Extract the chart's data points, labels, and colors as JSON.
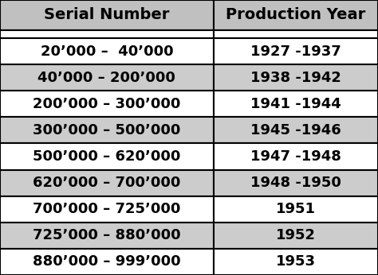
{
  "headers": [
    "Serial Number",
    "Production Year"
  ],
  "rows": [
    [
      "20’000 –  40’000",
      "1927 -1937"
    ],
    [
      "40’000 – 200’000",
      "1938 -1942"
    ],
    [
      "200’000 – 300’000",
      "1941 -1944"
    ],
    [
      "300’000 – 500’000",
      "1945 -1946"
    ],
    [
      "500’000 – 620’000",
      "1947 -1948"
    ],
    [
      "620’000 – 700’000",
      "1948 -1950"
    ],
    [
      "700’000 – 725’000",
      "1951"
    ],
    [
      "725’000 – 880’000",
      "1952"
    ],
    [
      "880’000 – 999’000",
      "1953"
    ]
  ],
  "row_colors": [
    "#ffffff",
    "#cccccc",
    "#ffffff",
    "#cccccc",
    "#ffffff",
    "#cccccc",
    "#ffffff",
    "#cccccc",
    "#ffffff"
  ],
  "header_bg": "#c0c0c0",
  "header_text_color": "#000000",
  "border_color": "#000000",
  "text_color": "#000000",
  "fig_bg": "#ffffff",
  "col_split": 0.565,
  "header_fontsize": 14,
  "cell_fontsize": 13
}
